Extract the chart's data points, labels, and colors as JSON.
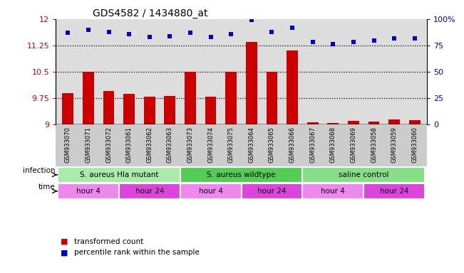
{
  "title": "GDS4582 / 1434880_at",
  "samples": [
    "GSM933070",
    "GSM933071",
    "GSM933072",
    "GSM933061",
    "GSM933062",
    "GSM933063",
    "GSM933073",
    "GSM933074",
    "GSM933075",
    "GSM933064",
    "GSM933065",
    "GSM933066",
    "GSM933067",
    "GSM933068",
    "GSM933069",
    "GSM933058",
    "GSM933059",
    "GSM933060"
  ],
  "bar_values": [
    9.9,
    10.5,
    9.95,
    9.87,
    9.78,
    9.82,
    10.5,
    9.78,
    10.5,
    11.35,
    10.5,
    11.1,
    9.07,
    9.05,
    9.1,
    9.08,
    9.15,
    9.12
  ],
  "dot_values": [
    87,
    90,
    88,
    86,
    83,
    84,
    87,
    83,
    86,
    99,
    88,
    92,
    78,
    76,
    78,
    80,
    82,
    82
  ],
  "ymin": 9.0,
  "ymax": 12.0,
  "yticks": [
    9,
    9.75,
    10.5,
    11.25,
    12
  ],
  "y2min": 0,
  "y2max": 100,
  "y2ticks": [
    0,
    25,
    50,
    75,
    100
  ],
  "dotted_lines": [
    9.75,
    10.5,
    11.25
  ],
  "bar_color": "#cc0000",
  "dot_color": "#0000cc",
  "infection_groups": [
    {
      "label": "S. aureus Hla mutant",
      "start": 0,
      "end": 6,
      "color": "#aaeaaa"
    },
    {
      "label": "S. aureus wildtype",
      "start": 6,
      "end": 12,
      "color": "#55cc55"
    },
    {
      "label": "saline control",
      "start": 12,
      "end": 18,
      "color": "#88dd88"
    }
  ],
  "time_groups": [
    {
      "label": "hour 4",
      "start": 0,
      "end": 3,
      "color": "#ee88ee"
    },
    {
      "label": "hour 24",
      "start": 3,
      "end": 6,
      "color": "#dd44dd"
    },
    {
      "label": "hour 4",
      "start": 6,
      "end": 9,
      "color": "#ee88ee"
    },
    {
      "label": "hour 24",
      "start": 9,
      "end": 12,
      "color": "#dd44dd"
    },
    {
      "label": "hour 4",
      "start": 12,
      "end": 15,
      "color": "#ee88ee"
    },
    {
      "label": "hour 24",
      "start": 15,
      "end": 18,
      "color": "#dd44dd"
    }
  ],
  "legend_bar_label": "transformed count",
  "legend_dot_label": "percentile rank within the sample",
  "infection_label": "infection",
  "time_label": "time",
  "title_fontsize": 10,
  "tick_color_left": "#cc0000",
  "tick_color_right": "#0000cc",
  "bg_color": "#dddddd",
  "xlabel_bg": "#cccccc"
}
